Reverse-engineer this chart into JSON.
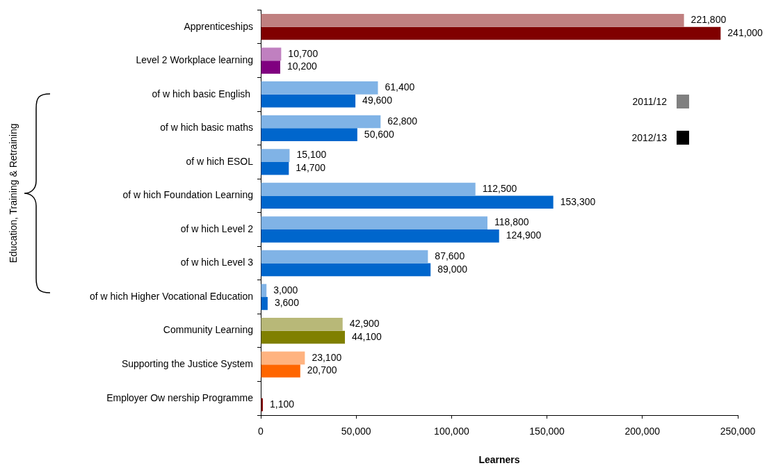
{
  "chart_data": {
    "type": "bar",
    "orientation": "horizontal",
    "xlabel": "Learners",
    "annotations": [
      "Education, Training & Retraining"
    ],
    "categories": [
      "Apprenticeships",
      "Level 2 Workplace learning",
      "of w hich basic English ",
      "of w hich basic maths",
      "of w hich ESOL",
      "of w hich Foundation Learning",
      "of w hich Level 2",
      "of w hich Level 3",
      "of w hich Higher Vocational Education",
      "Community Learning",
      "Supporting the Justice System",
      "Employer Ow nership Programme"
    ],
    "series": [
      {
        "name": "2011/12",
        "color": "#808080",
        "colors": [
          "#c08080",
          "#c080c0",
          "#80b3e6",
          "#80b3e6",
          "#80b3e6",
          "#80b3e6",
          "#80b3e6",
          "#80b3e6",
          "#80b3e6",
          "#b8b878",
          "#ffb380",
          "#c08080"
        ],
        "values": [
          221800,
          10700,
          61400,
          62800,
          15100,
          112500,
          118800,
          87600,
          3000,
          42900,
          23100,
          null
        ],
        "value_labels": [
          "221,800",
          "10,700",
          "61,400",
          "62,800",
          "15,100",
          "112,500",
          "118,800",
          "87,600",
          "3,000",
          "42,900",
          "23,100",
          null
        ]
      },
      {
        "name": "2012/13",
        "color": "#000000",
        "colors": [
          "#800000",
          "#800080",
          "#0066cc",
          "#0066cc",
          "#0066cc",
          "#0066cc",
          "#0066cc",
          "#0066cc",
          "#0066cc",
          "#808000",
          "#ff6600",
          "#800000"
        ],
        "values": [
          241000,
          10200,
          49600,
          50600,
          14700,
          153300,
          124900,
          89000,
          3600,
          44100,
          20700,
          1100
        ],
        "value_labels": [
          "241,000",
          "10,200",
          "49,600",
          "50,600",
          "14,700",
          "153,300",
          "124,900",
          "89,000",
          "3,600",
          "44,100",
          "20,700",
          "1,100"
        ]
      }
    ],
    "xlim": [
      0,
      250000
    ],
    "xticks": [
      0,
      {
        "value": 50000,
        "label": "50,000"
      },
      {
        "value": 100000,
        "label": "100,000"
      },
      {
        "value": 150000,
        "label": "150,000"
      },
      {
        "value": 200000,
        "label": "200,000"
      },
      {
        "value": 250000,
        "label": "250,000"
      }
    ],
    "grid": false,
    "legend": "top right"
  }
}
